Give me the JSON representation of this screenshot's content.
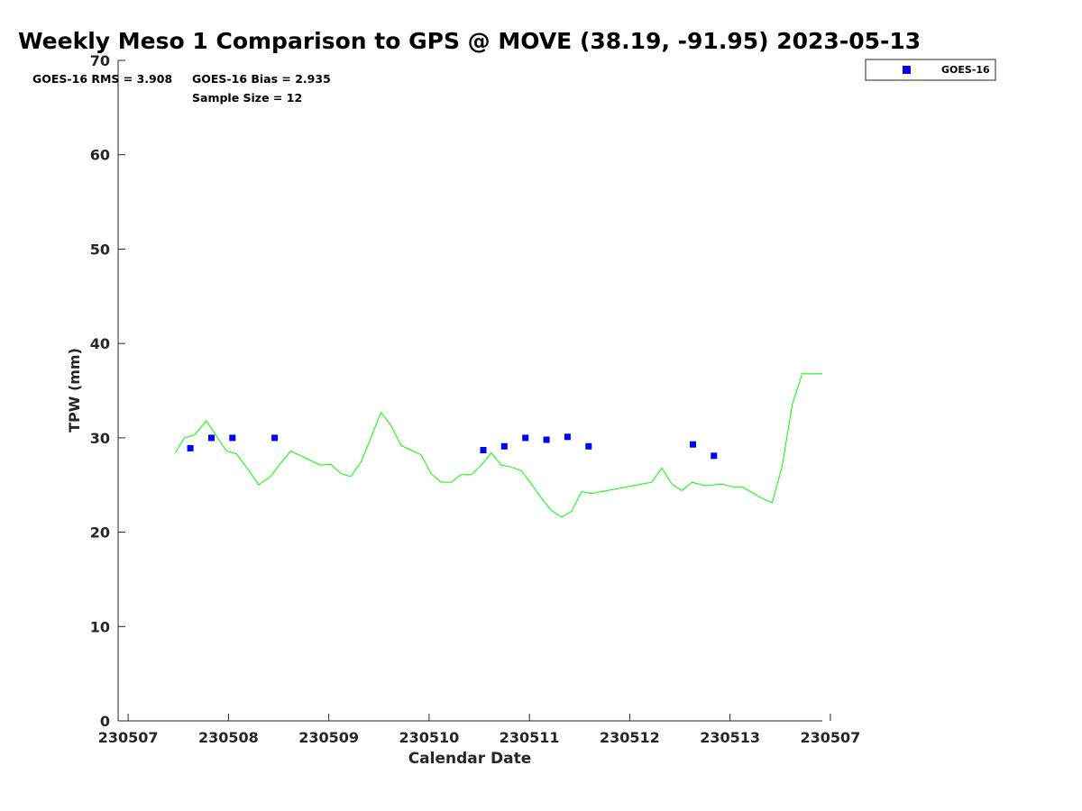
{
  "chart_data": {
    "type": "line",
    "title": "Weekly Meso 1 Comparison to GPS @ MOVE (38.19, -91.95) 2023-05-13",
    "xlabel": "Calendar Date",
    "ylabel": "TPW (mm)",
    "ylim": [
      0,
      70
    ],
    "yticks": [
      0,
      10,
      20,
      30,
      40,
      50,
      60,
      70
    ],
    "x_unit": "days",
    "xlim": [
      -0.1,
      6.92
    ],
    "xticks": [
      {
        "value": 0,
        "label": "230507"
      },
      {
        "value": 1,
        "label": "230508"
      },
      {
        "value": 2,
        "label": "230509"
      },
      {
        "value": 3,
        "label": "230510"
      },
      {
        "value": 4,
        "label": "230511"
      },
      {
        "value": 5,
        "label": "230512"
      },
      {
        "value": 6,
        "label": "230513"
      },
      {
        "value": 7,
        "label": "230507"
      }
    ],
    "grid": false,
    "legend": {
      "position": "top-right",
      "entries": [
        {
          "name": "GOES-16",
          "color": "#0000ff",
          "marker": "square"
        }
      ]
    },
    "stats": {
      "rms": "GOES-16 RMS = 3.908",
      "bias": "GOES-16 Bias = 2.935",
      "sample_size": "Sample Size = 12"
    },
    "series": [
      {
        "name": "GPS",
        "kind": "line",
        "color": "#00ff00",
        "x": [
          0.47,
          0.56,
          0.66,
          0.78,
          0.88,
          0.98,
          1.08,
          1.2,
          1.3,
          1.42,
          1.52,
          1.62,
          1.72,
          1.82,
          1.92,
          2.02,
          2.12,
          2.22,
          2.32,
          2.42,
          2.52,
          2.62,
          2.72,
          2.82,
          2.92,
          3.02,
          3.12,
          3.22,
          3.32,
          3.42,
          3.52,
          3.62,
          3.72,
          3.82,
          3.92,
          4.02,
          4.12,
          4.22,
          4.32,
          4.42,
          4.52,
          4.62,
          4.72,
          4.82,
          4.92,
          5.02,
          5.12,
          5.22,
          5.32,
          5.42,
          5.52,
          5.62,
          5.72,
          5.82,
          5.92,
          6.02,
          6.12,
          6.22,
          6.32,
          6.42,
          6.52,
          6.62,
          6.72,
          6.82,
          6.92
        ],
        "y": [
          28.4,
          30.0,
          30.3,
          31.8,
          30.2,
          28.6,
          28.3,
          26.6,
          25.0,
          25.9,
          27.3,
          28.6,
          28.1,
          27.6,
          27.1,
          27.2,
          26.2,
          25.9,
          27.4,
          30.0,
          32.7,
          31.3,
          29.2,
          28.7,
          28.2,
          26.2,
          25.3,
          25.3,
          26.1,
          26.1,
          27.1,
          28.4,
          27.1,
          26.9,
          26.5,
          25.1,
          23.6,
          22.3,
          21.6,
          22.2,
          24.3,
          24.1,
          24.3,
          24.5,
          24.7,
          24.9,
          25.1,
          25.3,
          26.8,
          25.1,
          24.4,
          25.3,
          25.0,
          25.0,
          25.1,
          24.8,
          24.8,
          24.2,
          23.6,
          23.1,
          27.0,
          33.5,
          36.8,
          36.8,
          36.8
        ]
      },
      {
        "name": "GOES-16",
        "kind": "scatter",
        "color": "#0000ff",
        "x": [
          0.62,
          0.83,
          1.04,
          1.46,
          3.54,
          3.75,
          3.96,
          4.17,
          4.38,
          4.59,
          5.63,
          5.84
        ],
        "y": [
          28.9,
          30.0,
          30.0,
          30.0,
          28.7,
          29.1,
          30.0,
          29.8,
          30.1,
          29.1,
          29.3,
          28.1
        ]
      }
    ]
  }
}
